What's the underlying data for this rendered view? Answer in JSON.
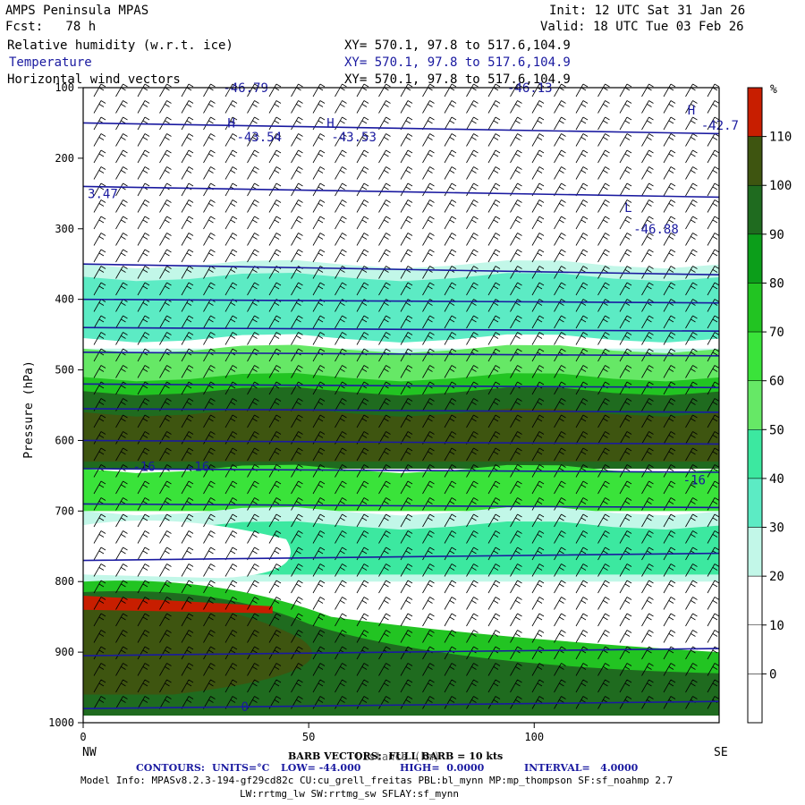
{
  "header": {
    "model": "AMPS Peninsula MPAS",
    "forecast": "Fcst:   78 h",
    "init": "Init: 12 UTC Sat 31 Jan 26",
    "valid": "Valid: 18 UTC Tue 03 Feb 26",
    "fields": [
      {
        "name": "Relative humidity (w.r.t. ice)",
        "xy": "XY= 570.1, 97.8 to 517.6,104.9",
        "color": "#000000"
      },
      {
        "name": "Temperature",
        "xy": "XY= 570.1, 97.8 to 517.6,104.9",
        "color": "#1a1aa0"
      },
      {
        "name": "Horizontal wind vectors",
        "xy": "XY= 570.1, 97.8 to 517.6,104.9",
        "color": "#000000"
      }
    ]
  },
  "chart_data": {
    "type": "heatmap",
    "ylabel": "Pressure (hPa)",
    "xlabel": "Distance (km)",
    "y_ticks": [
      100,
      200,
      300,
      400,
      500,
      600,
      700,
      800,
      900,
      1000
    ],
    "x_ticks": [
      0,
      50,
      100
    ],
    "xlim": [
      0,
      141
    ],
    "ylim": [
      1000,
      100
    ],
    "left_end": "NW",
    "right_end": "SE",
    "colorbar": {
      "unit": "%",
      "labels": [
        "110",
        "100",
        "90",
        "80",
        "70",
        "60",
        "50",
        "40",
        "30",
        "20",
        "10",
        "0"
      ],
      "colors": [
        "#c81e00",
        "#3e5510",
        "#1f6b1f",
        "#0c9e1a",
        "#22c422",
        "#3ae33a",
        "#66e866",
        "#3ce8a0",
        "#5cebc4",
        "#c2f7e8",
        "#ffffff",
        "#ffffff",
        "#ffffff"
      ]
    },
    "rh_bands": [
      {
        "p_top": 350,
        "p_bot": 480,
        "rh": "30-50"
      },
      {
        "p_top": 480,
        "p_bot": 530,
        "rh": "50-70"
      },
      {
        "p_top": 530,
        "p_bot": 640,
        "rh": "90-110"
      },
      {
        "p_top": 640,
        "p_bot": 700,
        "rh": "50-70"
      },
      {
        "p_top": 700,
        "p_bot": 800,
        "rh": "30-60"
      },
      {
        "p_top": 800,
        "p_bot": 990,
        "rh": "70-110"
      }
    ],
    "temperature_labels": [
      {
        "text": "-46.79",
        "x": 31,
        "p": 100
      },
      {
        "text": "-46.13",
        "x": 94,
        "p": 100
      },
      {
        "text": "H",
        "x": 32,
        "p": 150
      },
      {
        "text": "H",
        "x": 54,
        "p": 150
      },
      {
        "text": "H",
        "x": 134,
        "p": 132
      },
      {
        "text": "-43.54",
        "x": 34,
        "p": 170
      },
      {
        "text": "-43.53",
        "x": 55,
        "p": 170
      },
      {
        "text": "-42.7",
        "x": 137,
        "p": 153
      },
      {
        "text": "3.47",
        "x": 1,
        "p": 250
      },
      {
        "text": "L",
        "x": 120,
        "p": 270
      },
      {
        "text": "-46.88",
        "x": 122,
        "p": 300
      },
      {
        "text": "-16",
        "x": 11,
        "p": 637
      },
      {
        "text": "-16",
        "x": 23,
        "p": 637
      },
      {
        "text": "-16",
        "x": 133,
        "p": 656
      },
      {
        "text": "0",
        "x": 35,
        "p": 977
      }
    ],
    "temperature_contours_p_left": [
      150,
      240,
      350,
      400,
      440,
      475,
      520,
      555,
      600,
      640,
      690,
      770,
      905,
      980
    ],
    "barb_note": "BARB VECTORS:  FULL BARB = 10 kts",
    "contour_note": {
      "label": "CONTOURS:",
      "units": "UNITS=°C",
      "low": "LOW= -44.000",
      "high": "HIGH=  0.0000",
      "interval": "INTERVAL=   4.0000"
    }
  },
  "footer": {
    "model_info": "Model Info: MPASv8.2.3-194-gf29cd82c CU:cu_grell_freitas PBL:bl_mynn MP:mp_thompson SF:sf_noahmp 2.7",
    "model_info2": "LW:rrtmg_lw SW:rrtmg_sw SFLAY:sf_mynn"
  }
}
